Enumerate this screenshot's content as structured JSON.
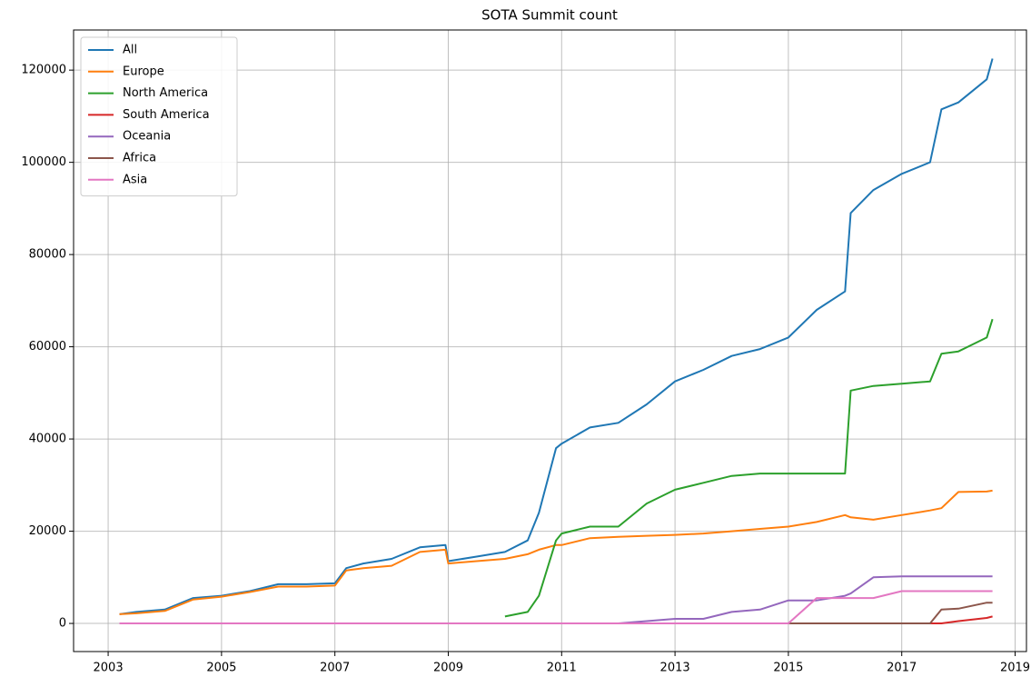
{
  "chart_data": {
    "type": "line",
    "title": "SOTA Summit count",
    "x": [
      2003.2,
      2003.5,
      2004.0,
      2004.5,
      2005.0,
      2005.5,
      2006.0,
      2006.5,
      2007.0,
      2007.2,
      2007.5,
      2008.0,
      2008.5,
      2008.95,
      2009.0,
      2009.5,
      2010.0,
      2010.4,
      2010.6,
      2010.9,
      2011.0,
      2011.5,
      2012.0,
      2012.5,
      2013.0,
      2013.5,
      2014.0,
      2014.5,
      2015.0,
      2015.5,
      2016.0,
      2016.1,
      2016.5,
      2017.0,
      2017.5,
      2017.7,
      2018.0,
      2018.5,
      2018.6
    ],
    "series": [
      {
        "name": "All",
        "color": "#1f77b4",
        "values": [
          2000,
          2500,
          3000,
          5500,
          6000,
          7000,
          8500,
          8500,
          8700,
          12000,
          13000,
          14000,
          16500,
          17000,
          13500,
          14500,
          15500,
          18000,
          24000,
          38000,
          39000,
          42500,
          43500,
          47500,
          52500,
          55000,
          58000,
          59500,
          62000,
          68000,
          72000,
          89000,
          94000,
          97500,
          100000,
          111500,
          113000,
          118000,
          122500
        ]
      },
      {
        "name": "Europe",
        "color": "#ff7f0e",
        "values": [
          2000,
          2200,
          2700,
          5200,
          5800,
          6800,
          8000,
          8000,
          8200,
          11500,
          12000,
          12500,
          15500,
          16000,
          13000,
          13500,
          14000,
          15000,
          16000,
          17000,
          17000,
          18500,
          18800,
          19000,
          19200,
          19500,
          20000,
          20500,
          21000,
          22000,
          23500,
          23000,
          22500,
          23500,
          24500,
          25000,
          28500,
          28600,
          28800
        ]
      },
      {
        "name": "North America",
        "color": "#2ca02c",
        "values": [
          null,
          null,
          null,
          null,
          null,
          null,
          null,
          null,
          null,
          null,
          null,
          null,
          null,
          null,
          null,
          null,
          1500,
          2500,
          6000,
          18000,
          19500,
          21000,
          21000,
          26000,
          29000,
          30500,
          32000,
          32500,
          32500,
          32500,
          32500,
          50500,
          51500,
          52000,
          52500,
          58500,
          59000,
          62000,
          66000
        ]
      },
      {
        "name": "South America",
        "color": "#d62728",
        "values": [
          0,
          0,
          0,
          0,
          0,
          0,
          0,
          0,
          0,
          0,
          0,
          0,
          0,
          0,
          0,
          0,
          0,
          0,
          0,
          0,
          0,
          0,
          0,
          0,
          0,
          0,
          0,
          0,
          0,
          0,
          0,
          0,
          0,
          0,
          0,
          0,
          500,
          1200,
          1500
        ]
      },
      {
        "name": "Oceania",
        "color": "#9467bd",
        "values": [
          0,
          0,
          0,
          0,
          0,
          0,
          0,
          0,
          0,
          0,
          0,
          0,
          0,
          0,
          0,
          0,
          0,
          0,
          0,
          0,
          0,
          0,
          0,
          500,
          1000,
          1000,
          2500,
          3000,
          5000,
          5000,
          6000,
          6500,
          10000,
          10200,
          10200,
          10200,
          10200,
          10200,
          10200
        ]
      },
      {
        "name": "Africa",
        "color": "#8c564b",
        "values": [
          0,
          0,
          0,
          0,
          0,
          0,
          0,
          0,
          0,
          0,
          0,
          0,
          0,
          0,
          0,
          0,
          0,
          0,
          0,
          0,
          0,
          0,
          0,
          0,
          0,
          0,
          0,
          0,
          0,
          0,
          0,
          0,
          0,
          0,
          0,
          3000,
          3200,
          4500,
          4500
        ]
      },
      {
        "name": "Asia",
        "color": "#e377c2",
        "values": [
          0,
          0,
          0,
          0,
          0,
          0,
          0,
          0,
          0,
          0,
          0,
          0,
          0,
          0,
          0,
          0,
          0,
          0,
          0,
          0,
          0,
          0,
          0,
          0,
          0,
          0,
          0,
          0,
          0,
          5500,
          5500,
          5500,
          5500,
          7000,
          7000,
          7000,
          7000,
          7000,
          7000
        ]
      }
    ],
    "xlim": [
      2002.39,
      2019.2
    ],
    "xticks": [
      2003,
      2005,
      2007,
      2009,
      2011,
      2013,
      2015,
      2017,
      2019
    ],
    "ylim": [
      -6100,
      128700
    ],
    "yticks": [
      0,
      20000,
      40000,
      60000,
      80000,
      100000,
      120000
    ],
    "grid": true,
    "legend": "upper-left"
  }
}
